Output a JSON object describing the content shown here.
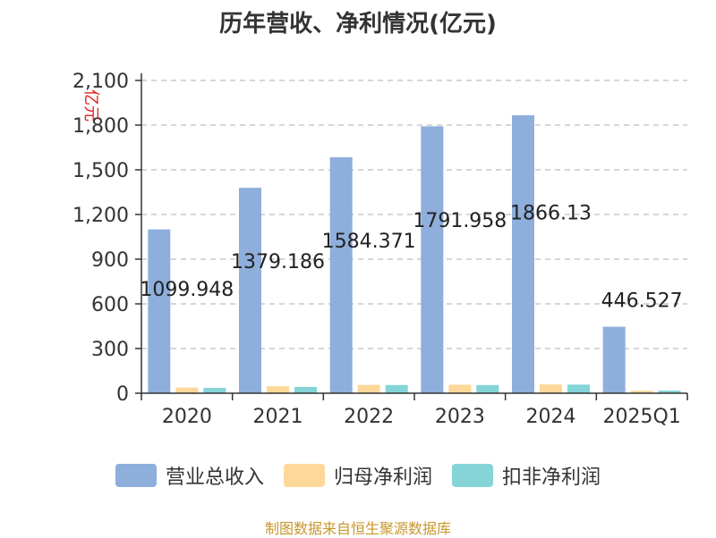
{
  "title": "历年营收、净利情况(亿元)",
  "source": "制图数据来自恒生聚源数据库",
  "colors": {
    "revenue": "#8eaedb",
    "net_profit": "#fdd899",
    "deducted_profit": "#84d4d8",
    "axis": "#333333",
    "grid": "#c8c8c8",
    "unit_label": "#e02020"
  },
  "chart_data": {
    "type": "bar",
    "categories": [
      "2020",
      "2021",
      "2022",
      "2023",
      "2024",
      "2025Q1"
    ],
    "ylabel": "亿元",
    "ylim": [
      0,
      2100
    ],
    "yticks": [
      0,
      300,
      600,
      900,
      1200,
      1500,
      1800,
      2100
    ],
    "ytick_labels": [
      "0",
      "300",
      "600",
      "900",
      "1,200",
      "1,500",
      "1,800",
      "2,100"
    ],
    "grid": true,
    "legend_position": "bottom",
    "series": [
      {
        "name": "营业总收入",
        "values": [
          1099.948,
          1379.186,
          1584.371,
          1791.958,
          1866.13,
          446.527
        ],
        "labels": [
          "1099.948",
          "1379.186",
          "1584.371",
          "1791.958",
          "1866.13",
          "446.527"
        ]
      },
      {
        "name": "归母净利润",
        "values": [
          38,
          47,
          56,
          57,
          59,
          17
        ]
      },
      {
        "name": "扣非净利润",
        "values": [
          36,
          42,
          55,
          55,
          58,
          18
        ]
      }
    ]
  }
}
